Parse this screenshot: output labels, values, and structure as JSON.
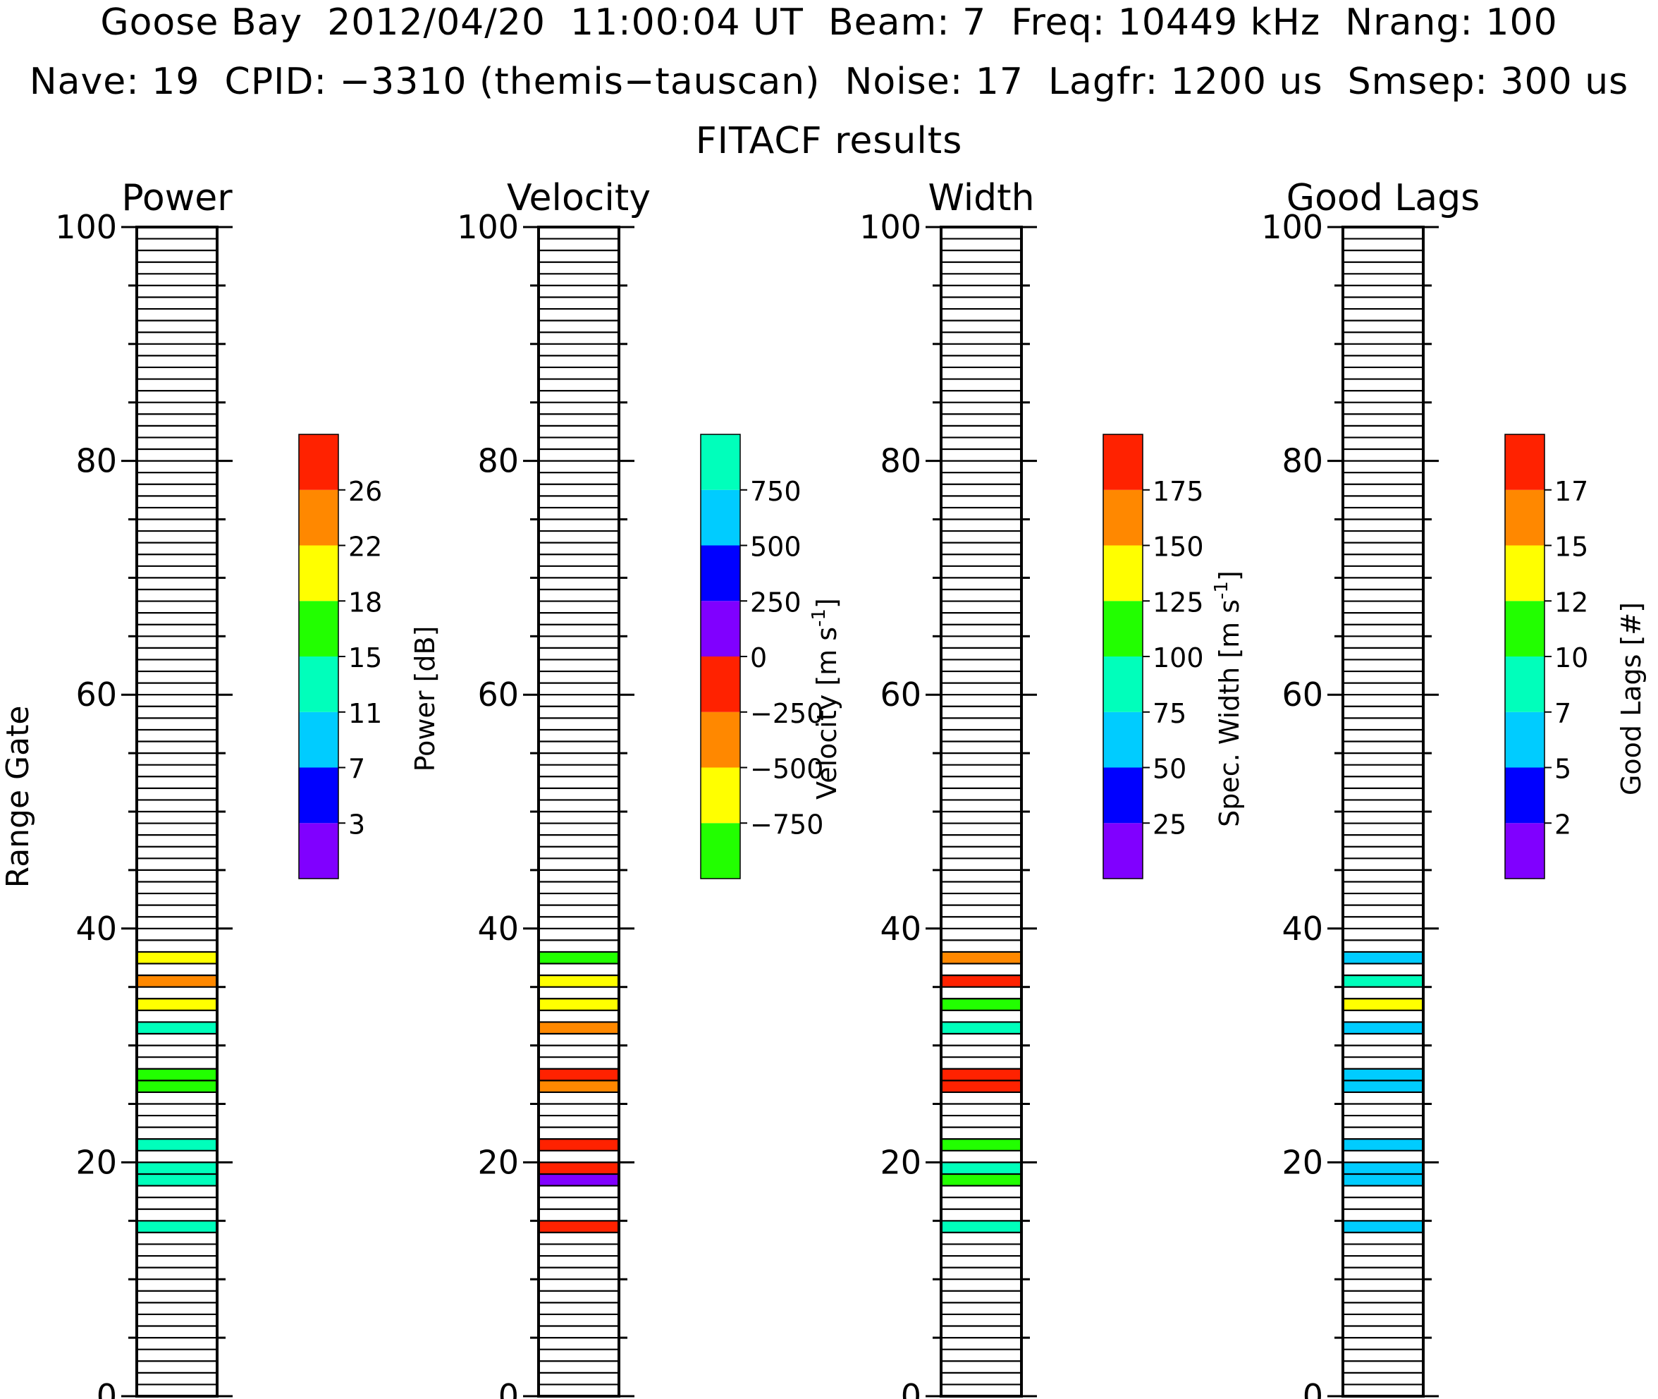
{
  "header": {
    "line1": "Goose Bay  2012/04/20  11:00:04 UT  Beam: 7  Freq: 10449 kHz  Nrang: 100",
    "line2": "Nave: 19  CPID: −3310 (themis−tauscan)  Noise: 17  Lagfr: 1200 us  Smsep: 300 us",
    "line3": "FITACF results"
  },
  "y_axis_label": "Range Gate",
  "chart_data": [
    {
      "type": "bar",
      "title": "Power",
      "ylim": [
        0,
        100
      ],
      "yticks": [
        "0",
        "20",
        "40",
        "60",
        "80",
        "100"
      ],
      "colorbar": {
        "label": "Power [dB]",
        "ticks": [
          "3",
          "7",
          "11",
          "15",
          "18",
          "22",
          "26"
        ],
        "colors": [
          "#8000ff",
          "#0000ff",
          "#00ccff",
          "#00ffbb",
          "#22ff00",
          "#ffff00",
          "#ff8800",
          "#ff2200"
        ]
      },
      "gates": [
        {
          "gate": 37,
          "color": "#ffff00"
        },
        {
          "gate": 35,
          "color": "#ff8800"
        },
        {
          "gate": 33,
          "color": "#ffff00"
        },
        {
          "gate": 31,
          "color": "#00ffbb"
        },
        {
          "gate": 27,
          "color": "#22ff00"
        },
        {
          "gate": 26,
          "color": "#22ff00"
        },
        {
          "gate": 21,
          "color": "#00ffbb"
        },
        {
          "gate": 19,
          "color": "#00ffbb"
        },
        {
          "gate": 18,
          "color": "#00ffbb"
        },
        {
          "gate": 14,
          "color": "#00ffbb"
        }
      ]
    },
    {
      "type": "bar",
      "title": "Velocity",
      "ylim": [
        0,
        100
      ],
      "yticks": [
        "0",
        "20",
        "40",
        "60",
        "80",
        "100"
      ],
      "colorbar": {
        "label": "Velocity [m s",
        "label_sup": "-1",
        "label_end": "]",
        "ticks": [
          "−750",
          "−500",
          "−250",
          "0",
          "250",
          "500",
          "750"
        ],
        "colors": [
          "#22ff00",
          "#ffff00",
          "#ff8800",
          "#ff2200",
          "#8000ff",
          "#0000ff",
          "#00ccff",
          "#00ffbb"
        ]
      },
      "gates": [
        {
          "gate": 37,
          "color": "#22ff00"
        },
        {
          "gate": 35,
          "color": "#ffff00"
        },
        {
          "gate": 33,
          "color": "#ffff00"
        },
        {
          "gate": 31,
          "color": "#ff8800"
        },
        {
          "gate": 27,
          "color": "#ff2200"
        },
        {
          "gate": 26,
          "color": "#ff8800"
        },
        {
          "gate": 21,
          "color": "#ff2200"
        },
        {
          "gate": 19,
          "color": "#ff2200"
        },
        {
          "gate": 18,
          "color": "#8000ff"
        },
        {
          "gate": 14,
          "color": "#ff2200"
        }
      ]
    },
    {
      "type": "bar",
      "title": "Width",
      "ylim": [
        0,
        100
      ],
      "yticks": [
        "0",
        "20",
        "40",
        "60",
        "80",
        "100"
      ],
      "colorbar": {
        "label": "Spec. Width [m s",
        "label_sup": "-1",
        "label_end": "]",
        "ticks": [
          "25",
          "50",
          "75",
          "100",
          "125",
          "150",
          "175"
        ],
        "colors": [
          "#8000ff",
          "#0000ff",
          "#00ccff",
          "#00ffbb",
          "#22ff00",
          "#ffff00",
          "#ff8800",
          "#ff2200"
        ]
      },
      "gates": [
        {
          "gate": 37,
          "color": "#ff8800"
        },
        {
          "gate": 35,
          "color": "#ff2200"
        },
        {
          "gate": 33,
          "color": "#22ff00"
        },
        {
          "gate": 31,
          "color": "#00ffbb"
        },
        {
          "gate": 27,
          "color": "#ff2200"
        },
        {
          "gate": 26,
          "color": "#ff2200"
        },
        {
          "gate": 21,
          "color": "#22ff00"
        },
        {
          "gate": 19,
          "color": "#00ffbb"
        },
        {
          "gate": 18,
          "color": "#22ff00"
        },
        {
          "gate": 14,
          "color": "#00ffbb"
        }
      ]
    },
    {
      "type": "bar",
      "title": "Good Lags",
      "ylim": [
        0,
        100
      ],
      "yticks": [
        "0",
        "20",
        "40",
        "60",
        "80",
        "100"
      ],
      "colorbar": {
        "label": "Good Lags [#]",
        "ticks": [
          "2",
          "5",
          "7",
          "10",
          "12",
          "15",
          "17"
        ],
        "colors": [
          "#8000ff",
          "#0000ff",
          "#00ccff",
          "#00ffbb",
          "#22ff00",
          "#ffff00",
          "#ff8800",
          "#ff2200"
        ]
      },
      "gates": [
        {
          "gate": 37,
          "color": "#00ccff"
        },
        {
          "gate": 35,
          "color": "#00ffbb"
        },
        {
          "gate": 33,
          "color": "#ffff00"
        },
        {
          "gate": 31,
          "color": "#00ccff"
        },
        {
          "gate": 27,
          "color": "#00ccff"
        },
        {
          "gate": 26,
          "color": "#00ccff"
        },
        {
          "gate": 21,
          "color": "#00ccff"
        },
        {
          "gate": 19,
          "color": "#00ccff"
        },
        {
          "gate": 18,
          "color": "#00ccff"
        },
        {
          "gate": 14,
          "color": "#00ccff"
        }
      ]
    }
  ]
}
